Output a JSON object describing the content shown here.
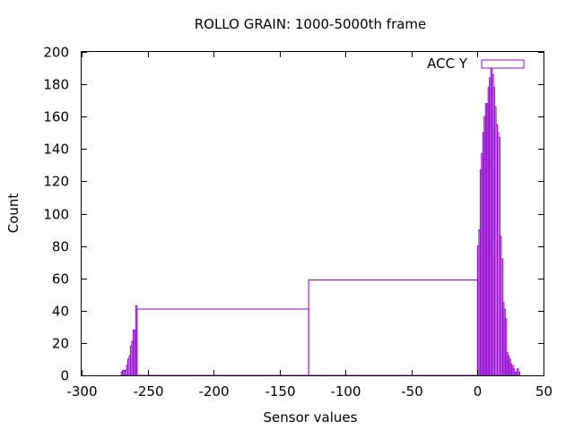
{
  "chart_data": {
    "type": "bar",
    "title": "ROLLO GRAIN: 1000-5000th frame",
    "xlabel": "Sensor values",
    "ylabel": "Count",
    "xlim": [
      -300,
      50
    ],
    "ylim": [
      0,
      200
    ],
    "xticks": [
      -300,
      -250,
      -200,
      -150,
      -100,
      -50,
      0,
      50
    ],
    "yticks": [
      0,
      20,
      40,
      60,
      80,
      100,
      120,
      140,
      160,
      180,
      200
    ],
    "grid": false,
    "legend_position": "top-right",
    "series": [
      {
        "name": "ACC Y",
        "color": "#9400d3",
        "bars": [
          {
            "x0": -270,
            "x1": -269,
            "value": 2
          },
          {
            "x0": -269,
            "x1": -268,
            "value": 3
          },
          {
            "x0": -268,
            "x1": -267,
            "value": 3
          },
          {
            "x0": -267,
            "x1": -266,
            "value": 3
          },
          {
            "x0": -266,
            "x1": -265,
            "value": 6
          },
          {
            "x0": -265,
            "x1": -264,
            "value": 10
          },
          {
            "x0": -264,
            "x1": -263,
            "value": 12
          },
          {
            "x0": -263,
            "x1": -262,
            "value": 18
          },
          {
            "x0": -262,
            "x1": -261,
            "value": 21
          },
          {
            "x0": -261,
            "x1": -260,
            "value": 28
          },
          {
            "x0": -260,
            "x1": -259,
            "value": 28
          },
          {
            "x0": -259,
            "x1": -258,
            "value": 43
          },
          {
            "x0": -258,
            "x1": -128,
            "value": 41
          },
          {
            "x0": -128,
            "x1": 0,
            "value": 59
          },
          {
            "x0": 0,
            "x1": 1,
            "value": 80
          },
          {
            "x0": 1,
            "x1": 2,
            "value": 90
          },
          {
            "x0": 2,
            "x1": 3,
            "value": 127
          },
          {
            "x0": 3,
            "x1": 4,
            "value": 137
          },
          {
            "x0": 4,
            "x1": 5,
            "value": 150
          },
          {
            "x0": 5,
            "x1": 6,
            "value": 160
          },
          {
            "x0": 6,
            "x1": 7,
            "value": 168
          },
          {
            "x0": 7,
            "x1": 8,
            "value": 168
          },
          {
            "x0": 8,
            "x1": 9,
            "value": 178
          },
          {
            "x0": 9,
            "x1": 10,
            "value": 184
          },
          {
            "x0": 10,
            "x1": 11,
            "value": 190
          },
          {
            "x0": 11,
            "x1": 12,
            "value": 186
          },
          {
            "x0": 12,
            "x1": 13,
            "value": 178
          },
          {
            "x0": 13,
            "x1": 14,
            "value": 166
          },
          {
            "x0": 14,
            "x1": 15,
            "value": 155
          },
          {
            "x0": 15,
            "x1": 16,
            "value": 150
          },
          {
            "x0": 16,
            "x1": 17,
            "value": 147
          },
          {
            "x0": 17,
            "x1": 18,
            "value": 86
          },
          {
            "x0": 18,
            "x1": 19,
            "value": 72
          },
          {
            "x0": 19,
            "x1": 20,
            "value": 45
          },
          {
            "x0": 20,
            "x1": 21,
            "value": 41
          },
          {
            "x0": 21,
            "x1": 22,
            "value": 35
          },
          {
            "x0": 22,
            "x1": 23,
            "value": 14
          },
          {
            "x0": 23,
            "x1": 24,
            "value": 12
          },
          {
            "x0": 24,
            "x1": 25,
            "value": 10
          },
          {
            "x0": 25,
            "x1": 26,
            "value": 7
          },
          {
            "x0": 26,
            "x1": 27,
            "value": 6
          },
          {
            "x0": 27,
            "x1": 28,
            "value": 4
          },
          {
            "x0": 28,
            "x1": 29,
            "value": 2
          },
          {
            "x0": 29,
            "x1": 30,
            "value": 2
          },
          {
            "x0": 30,
            "x1": 31,
            "value": 4
          },
          {
            "x0": 31,
            "x1": 32,
            "value": 2
          }
        ]
      }
    ]
  }
}
